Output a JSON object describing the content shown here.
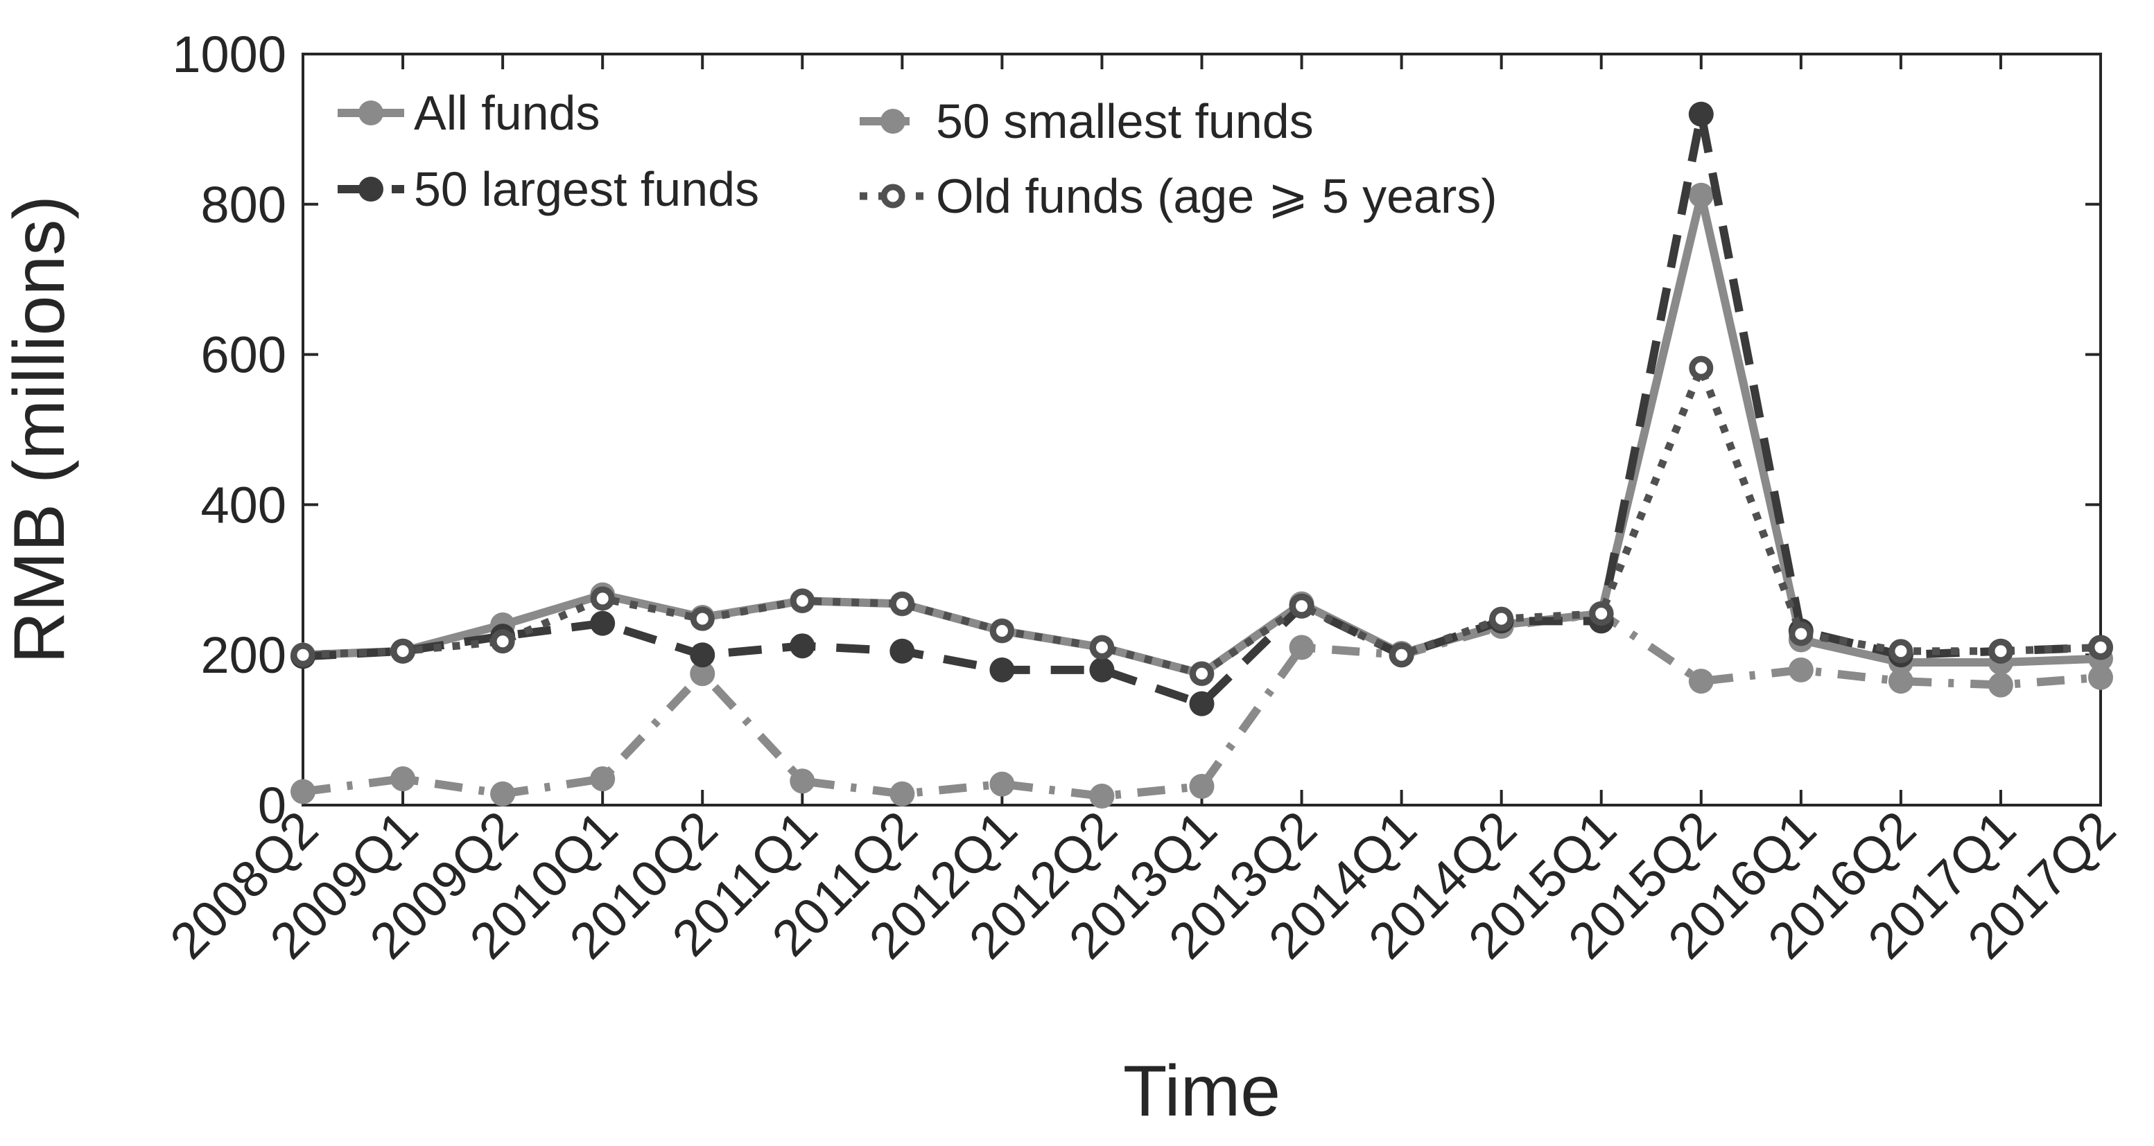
{
  "chart_data": {
    "type": "line",
    "title": "",
    "xlabel": "Time",
    "ylabel": "RMB (millions)",
    "ylim": [
      0,
      1000
    ],
    "yticks": [
      0,
      200,
      400,
      600,
      800,
      1000
    ],
    "grid": false,
    "legend_position": "top-left",
    "categories": [
      "2008Q2",
      "2009Q1",
      "2009Q2",
      "2010Q1",
      "2010Q2",
      "2011Q1",
      "2011Q2",
      "2012Q1",
      "2012Q2",
      "2013Q1",
      "2013Q2",
      "2014Q1",
      "2014Q2",
      "2015Q1",
      "2015Q2",
      "2016Q1",
      "2016Q2",
      "2017Q1",
      "2017Q2"
    ],
    "series": [
      {
        "name": "All funds",
        "style": "solid",
        "marker": "filled",
        "color": "#8a8a8a",
        "values": [
          200,
          205,
          240,
          280,
          250,
          272,
          268,
          232,
          210,
          175,
          268,
          202,
          240,
          255,
          812,
          220,
          190,
          190,
          195
        ]
      },
      {
        "name": "50 largest funds",
        "style": "dashed",
        "marker": "filled",
        "color": "#3a3a3a",
        "values": [
          198,
          205,
          225,
          242,
          200,
          212,
          205,
          180,
          180,
          135,
          265,
          200,
          245,
          245,
          920,
          232,
          200,
          205,
          210
        ]
      },
      {
        "name": "50 smallest funds",
        "style": "dashdot",
        "marker": "filled",
        "color": "#8a8a8a",
        "values": [
          18,
          35,
          15,
          35,
          175,
          32,
          15,
          28,
          12,
          25,
          210,
          200,
          238,
          255,
          165,
          180,
          165,
          160,
          170
        ]
      },
      {
        "name": "Old funds (age ⩾ 5 years)",
        "style": "dotted",
        "marker": "open",
        "color": "#505050",
        "values": [
          200,
          205,
          218,
          275,
          248,
          272,
          268,
          232,
          210,
          175,
          265,
          200,
          248,
          255,
          582,
          228,
          205,
          205,
          210
        ]
      }
    ]
  }
}
